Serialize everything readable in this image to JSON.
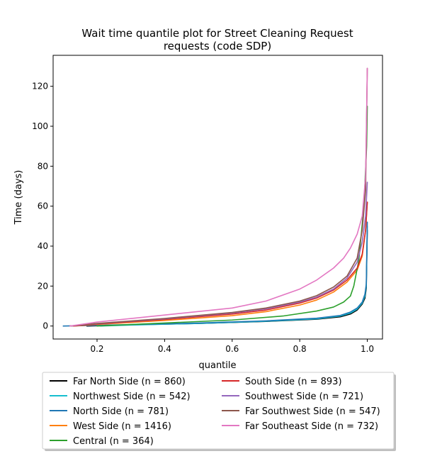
{
  "chart_data": {
    "type": "line",
    "title_lines": [
      "Wait time quantile plot for Street Cleaning Request",
      "requests (code SDP)"
    ],
    "xlabel": "quantile",
    "ylabel": "Time (days)",
    "xlim": [
      0.07,
      1.045
    ],
    "ylim": [
      -6.5,
      135.5
    ],
    "xticks": [
      0.2,
      0.4,
      0.6,
      0.8,
      1.0
    ],
    "xtick_labels": [
      "0.2",
      "0.4",
      "0.6",
      "0.8",
      "1.0"
    ],
    "yticks": [
      0,
      20,
      40,
      60,
      80,
      100,
      120
    ],
    "ytick_labels": [
      "0",
      "20",
      "40",
      "60",
      "80",
      "100",
      "120"
    ],
    "grid": false,
    "legend_placement": "below plot, two columns",
    "series": [
      {
        "name": "Far North Side (n = 860)",
        "color": "#000000",
        "x": [
          0.17,
          0.3,
          0.5,
          0.7,
          0.85,
          0.92,
          0.95,
          0.97,
          0.985,
          0.993,
          0.997,
          1.0
        ],
        "y": [
          0,
          0.6,
          1.3,
          2.3,
          3.4,
          4.6,
          6.0,
          8.0,
          11.0,
          14.0,
          19.0,
          48.0
        ]
      },
      {
        "name": "Northwest Side (n = 542)",
        "color": "#17becf",
        "x": [
          0.21,
          0.3,
          0.5,
          0.7,
          0.85,
          0.92,
          0.95,
          0.97,
          0.985,
          0.993,
          0.997,
          1.0
        ],
        "y": [
          0,
          0.5,
          1.3,
          2.4,
          3.6,
          5.0,
          6.5,
          8.5,
          11.5,
          15.0,
          20.0,
          50.0
        ]
      },
      {
        "name": "North Side (n = 781)",
        "color": "#1f77b4",
        "x": [
          0.1,
          0.3,
          0.5,
          0.7,
          0.85,
          0.92,
          0.95,
          0.97,
          0.985,
          0.993,
          0.997,
          1.0
        ],
        "y": [
          0,
          0.7,
          1.5,
          2.6,
          3.9,
          5.3,
          7.0,
          9.0,
          12.0,
          16.0,
          21.0,
          52.0
        ]
      },
      {
        "name": "West Side (n = 1416)",
        "color": "#ff7f0e",
        "x": [
          0.13,
          0.2,
          0.4,
          0.6,
          0.7,
          0.8,
          0.85,
          0.9,
          0.94,
          0.97,
          0.985,
          0.995,
          1.0
        ],
        "y": [
          0,
          0.8,
          2.8,
          5.2,
          7.2,
          10.5,
          13.0,
          17.0,
          22.0,
          28.0,
          35.0,
          48.0,
          62.0
        ]
      },
      {
        "name": "Central (n = 364)",
        "color": "#2ca02c",
        "x": [
          0.2,
          0.4,
          0.6,
          0.75,
          0.85,
          0.9,
          0.93,
          0.95,
          0.96,
          0.975,
          0.99,
          0.998,
          1.0
        ],
        "y": [
          0,
          1.5,
          3.0,
          5.0,
          7.5,
          9.5,
          12.0,
          15.0,
          20.0,
          33.0,
          60.0,
          90.0,
          110.0
        ]
      },
      {
        "name": "South Side (n = 893)",
        "color": "#d62728",
        "x": [
          0.13,
          0.2,
          0.4,
          0.6,
          0.7,
          0.8,
          0.85,
          0.9,
          0.94,
          0.97,
          0.985,
          0.995,
          1.0
        ],
        "y": [
          0,
          1.0,
          3.3,
          6.0,
          8.0,
          11.5,
          14.0,
          18.0,
          23.0,
          29.0,
          36.0,
          48.0,
          62.0
        ]
      },
      {
        "name": "Southwest Side (n = 721)",
        "color": "#9467bd",
        "x": [
          0.12,
          0.2,
          0.4,
          0.6,
          0.7,
          0.8,
          0.85,
          0.9,
          0.94,
          0.97,
          0.985,
          0.995,
          1.0
        ],
        "y": [
          0,
          1.2,
          3.6,
          6.5,
          8.6,
          12.0,
          14.5,
          18.5,
          24.0,
          32.0,
          42.0,
          55.0,
          72.0
        ]
      },
      {
        "name": "Far Southwest Side (n = 547)",
        "color": "#8c564b",
        "x": [
          0.12,
          0.2,
          0.4,
          0.6,
          0.7,
          0.8,
          0.85,
          0.9,
          0.94,
          0.97,
          0.985,
          0.995,
          1.0
        ],
        "y": [
          0,
          1.3,
          3.8,
          6.8,
          9.0,
          12.5,
          15.2,
          19.5,
          25.0,
          34.0,
          48.0,
          68.0,
          129.0
        ]
      },
      {
        "name": "Far Southeast Side (n = 732)",
        "color": "#e377c2",
        "x": [
          0.12,
          0.2,
          0.4,
          0.6,
          0.7,
          0.8,
          0.85,
          0.9,
          0.93,
          0.95,
          0.97,
          0.985,
          0.995,
          1.0
        ],
        "y": [
          0,
          2.0,
          5.5,
          9.0,
          12.5,
          18.5,
          23.0,
          29.0,
          34.0,
          39.0,
          46.0,
          55.0,
          75.0,
          129.0
        ]
      }
    ]
  }
}
